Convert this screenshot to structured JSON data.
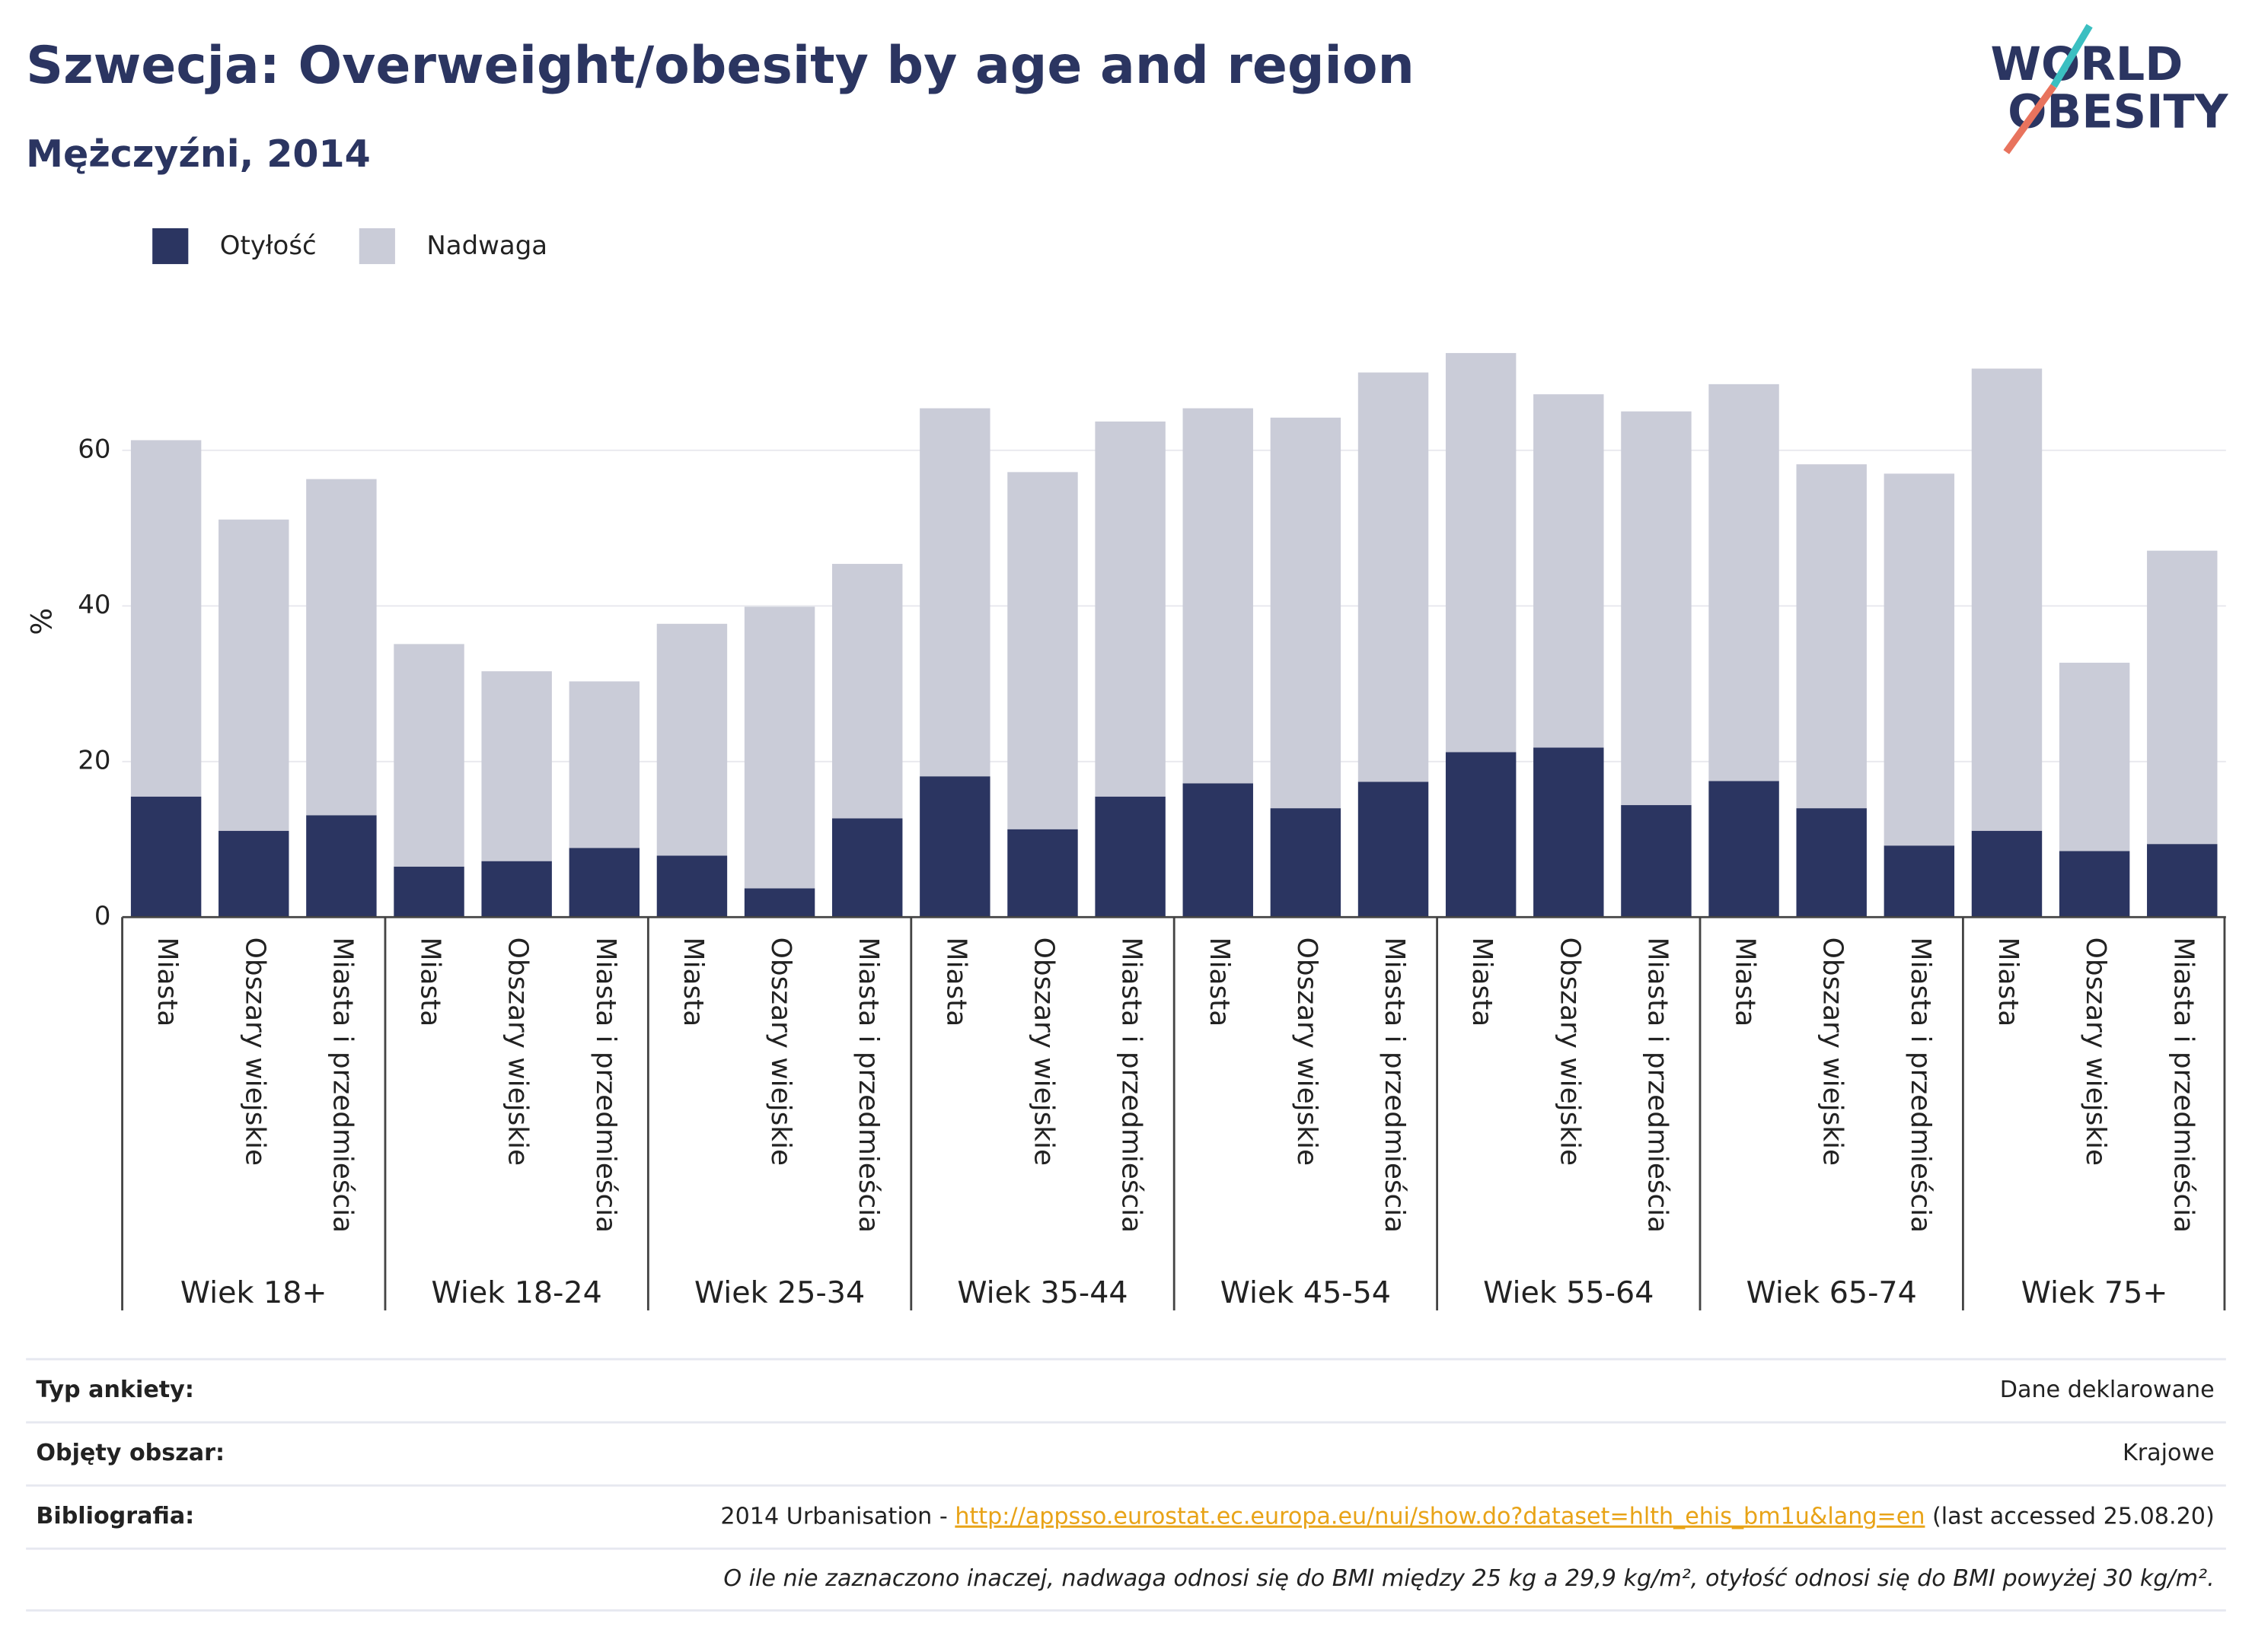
{
  "chart_data": {
    "type": "bar",
    "stacked": true,
    "title": "Szwecja: Overweight/obesity by age and region",
    "subtitle": "Mężczyźni, 2014",
    "y_label": "%",
    "groups": [
      "Wiek 18+",
      "Wiek 18-24",
      "Wiek 25-34",
      "Wiek 35-44",
      "Wiek 45-54",
      "Wiek 55-64",
      "Wiek 65-74",
      "Wiek 75+"
    ],
    "categories": [
      "Miasta",
      "Obszary wiejskie",
      "Miasta i przedmieścia",
      "Miasta",
      "Obszary wiejskie",
      "Miasta i przedmieścia",
      "Miasta",
      "Obszary wiejskie",
      "Miasta i przedmieścia",
      "Miasta",
      "Obszary wiejskie",
      "Miasta i przedmieścia",
      "Miasta",
      "Obszary wiejskie",
      "Miasta i przedmieścia",
      "Miasta",
      "Obszary wiejskie",
      "Miasta i przedmieścia",
      "Miasta",
      "Obszary wiejskie",
      "Miasta i przedmieścia",
      "Miasta",
      "Obszary wiejskie",
      "Miasta i przedmieścia"
    ],
    "series": [
      {
        "name": "Otyłość",
        "color": "#2b3561",
        "values": [
          15.5,
          11.1,
          13.1,
          6.5,
          7.2,
          8.9,
          7.9,
          3.7,
          12.7,
          18.1,
          11.3,
          15.5,
          17.2,
          14.0,
          17.4,
          21.2,
          21.8,
          14.4,
          17.5,
          14.0,
          9.2,
          11.1,
          8.5,
          9.4
        ]
      },
      {
        "name": "Nadwaga",
        "color": "#caccd8",
        "values": [
          45.8,
          40.0,
          43.2,
          28.6,
          24.4,
          21.4,
          29.8,
          36.2,
          32.7,
          47.3,
          45.9,
          48.2,
          48.2,
          50.2,
          52.6,
          51.3,
          45.4,
          50.6,
          51.0,
          44.2,
          47.8,
          59.4,
          24.2,
          37.7
        ]
      }
    ],
    "ylim": [
      0,
      76
    ],
    "yticks": [
      0,
      20,
      40,
      60
    ],
    "grid": true
  },
  "logo": [
    "WORLD",
    "OBESITY"
  ],
  "footer": {
    "rows": [
      {
        "label": "Typ ankiety:",
        "value": "Dane deklarowane"
      },
      {
        "label": "Objęty obszar:",
        "value": "Krajowe"
      },
      {
        "label": "Bibliografia:",
        "value": [
          "2014 Urbanisation - ",
          "http://appsso.eurostat.ec.europa.eu/nui/show.do?dataset=hlth_ehis_bm1u&lang=en",
          " (last accessed 25.08.20)"
        ]
      }
    ],
    "note": "O ile nie zaznaczono inaczej, nadwaga odnosi się do BMI między 25 kg a 29,9 kg/m², otyłość odnosi się do BMI powyżej 30 kg/m²."
  }
}
